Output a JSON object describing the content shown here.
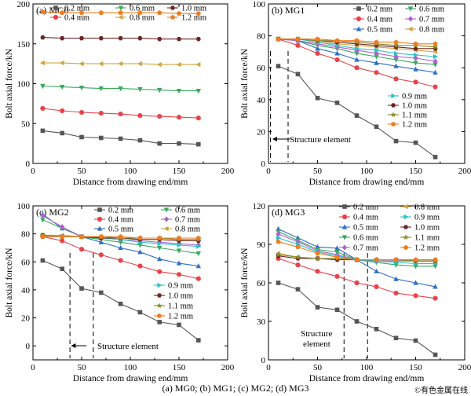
{
  "colors": {
    "0.2 mm": "#555555",
    "0.4 mm": "#e8434b",
    "0.5 mm": "#2f6fc4",
    "0.6 mm": "#3aa85e",
    "0.7 mm": "#b160cf",
    "0.8 mm": "#d1a43f",
    "0.9 mm": "#2cc2c8",
    "1.0 mm": "#6b2626",
    "1.1 mm": "#8a8a2e",
    "1.2 mm": "#f07c1e"
  },
  "caption": "(a) MG0; (b) MG1; (c) MG2; (d) MG3",
  "watermark": "©有色金属在线",
  "chart_data": [
    {
      "type": "line",
      "panel_label": "(a) MG0",
      "xlabel": "Distance from drawing end/mm",
      "ylabel": "Bolt axial force/kN",
      "xlim": [
        0,
        200
      ],
      "ylim": [
        0,
        200
      ],
      "xticks": [
        "0",
        "50",
        "100",
        "150",
        "200"
      ],
      "yticks": [
        "0",
        "50",
        "100",
        "150",
        "200"
      ],
      "x": [
        10,
        30,
        50,
        70,
        90,
        110,
        130,
        150,
        170
      ],
      "annotation": "",
      "series": [
        {
          "name": "0.2 mm",
          "values": [
            41,
            38,
            33,
            32,
            31,
            29,
            25,
            25,
            24
          ]
        },
        {
          "name": "0.4 mm",
          "values": [
            69,
            66,
            64,
            63,
            62,
            60,
            59,
            58,
            57
          ]
        },
        {
          "name": "0.6 mm",
          "values": [
            97,
            96,
            95,
            94,
            94,
            93,
            92,
            91,
            91
          ]
        },
        {
          "name": "0.8 mm",
          "values": [
            126,
            126,
            125,
            125,
            125,
            125,
            124,
            124,
            124
          ]
        },
        {
          "name": "1.0 mm",
          "values": [
            158,
            157,
            157,
            157,
            157,
            157,
            156,
            156,
            156
          ]
        },
        {
          "name": "1.2 mm",
          "values": [
            190,
            189,
            189,
            189,
            189,
            189,
            189,
            188,
            188
          ]
        }
      ]
    },
    {
      "type": "line",
      "panel_label": "(b) MG1",
      "xlabel": "Distance from drawing end/mm",
      "ylabel": "Bolt axial force/kN",
      "xlim": [
        0,
        200
      ],
      "ylim": [
        0,
        100
      ],
      "xticks": [
        "0",
        "50",
        "100",
        "150",
        "200"
      ],
      "yticks": [
        "0",
        "20",
        "40",
        "60",
        "80",
        "100"
      ],
      "x": [
        10,
        30,
        50,
        70,
        90,
        110,
        130,
        150,
        170
      ],
      "annotation": "Structure element",
      "series": [
        {
          "name": "0.2 mm",
          "values": [
            61,
            56,
            41,
            38,
            30,
            23,
            14,
            13,
            4
          ]
        },
        {
          "name": "0.4 mm",
          "values": [
            78,
            74,
            69,
            65,
            60,
            57,
            53,
            51,
            48
          ]
        },
        {
          "name": "0.5 mm",
          "values": [
            78,
            77,
            72,
            69,
            65,
            63,
            61,
            59,
            57
          ]
        },
        {
          "name": "0.6 mm",
          "values": [
            78,
            77,
            74,
            72,
            69,
            67,
            65,
            63,
            62
          ]
        },
        {
          "name": "0.7 mm",
          "values": [
            78,
            77,
            75,
            73,
            71,
            69,
            67,
            66,
            64
          ]
        },
        {
          "name": "0.8 mm",
          "values": [
            78,
            78,
            76,
            75,
            74,
            73,
            72,
            71,
            70
          ]
        },
        {
          "name": "0.9 mm",
          "values": [
            78,
            78,
            76,
            74,
            72,
            71,
            69,
            68,
            67
          ]
        },
        {
          "name": "1.0 mm",
          "values": [
            78,
            78,
            77,
            76,
            75,
            74,
            73,
            72,
            72
          ]
        },
        {
          "name": "1.1 mm",
          "values": [
            78,
            78,
            77,
            77,
            76,
            75,
            74,
            74,
            73
          ]
        },
        {
          "name": "1.2 mm",
          "values": [
            78,
            78,
            78,
            77,
            77,
            76,
            76,
            75,
            75
          ]
        }
      ]
    },
    {
      "type": "line",
      "panel_label": "(c) MG2",
      "xlabel": "Distance from drawing end/mm",
      "ylabel": "Bolt axial force/kN",
      "xlim": [
        0,
        200
      ],
      "ylim": [
        -10,
        100
      ],
      "xticks": [
        "0",
        "50",
        "100",
        "150",
        "200"
      ],
      "yticks": [
        "0",
        "20",
        "40",
        "60",
        "80",
        "100"
      ],
      "x": [
        10,
        30,
        50,
        70,
        90,
        110,
        130,
        150,
        170
      ],
      "annotation": "Structure element",
      "series": [
        {
          "name": "0.2 mm",
          "values": [
            61,
            55,
            41,
            38,
            30,
            24,
            17,
            15,
            4
          ]
        },
        {
          "name": "0.4 mm",
          "values": [
            78,
            75,
            69,
            65,
            61,
            57,
            53,
            51,
            48
          ]
        },
        {
          "name": "0.5 mm",
          "values": [
            94,
            84,
            78,
            74,
            70,
            67,
            62,
            59,
            57
          ]
        },
        {
          "name": "0.6 mm",
          "values": [
            90,
            84,
            78,
            76,
            74,
            72,
            70,
            68,
            66
          ]
        },
        {
          "name": "0.7 mm",
          "values": [
            93,
            85,
            78,
            77,
            76,
            75,
            74,
            73,
            72
          ]
        },
        {
          "name": "0.8 mm",
          "values": [
            79,
            79,
            78,
            78,
            77,
            77,
            77,
            76,
            76
          ]
        },
        {
          "name": "0.9 mm",
          "values": [
            79,
            78,
            78,
            77,
            76,
            74,
            73,
            72,
            71
          ]
        },
        {
          "name": "1.0 mm",
          "values": [
            79,
            78,
            78,
            77,
            77,
            76,
            76,
            75,
            75
          ]
        },
        {
          "name": "1.1 mm",
          "values": [
            79,
            78,
            78,
            78,
            77,
            77,
            77,
            76,
            76
          ]
        },
        {
          "name": "1.2 mm",
          "values": [
            78,
            78,
            78,
            78,
            78,
            77,
            77,
            77,
            77
          ]
        }
      ]
    },
    {
      "type": "line",
      "panel_label": "(d) MG3",
      "xlabel": "Distance from drawing end/mm",
      "ylabel": "Bolt axial force/kN",
      "xlim": [
        0,
        200
      ],
      "ylim": [
        0,
        120
      ],
      "xticks": [
        "0",
        "50",
        "100",
        "150",
        "200"
      ],
      "yticks": [
        "0",
        "30",
        "60",
        "90",
        "120"
      ],
      "x": [
        10,
        30,
        50,
        70,
        90,
        110,
        130,
        150,
        170
      ],
      "annotation": "Structure element",
      "series": [
        {
          "name": "0.2 mm",
          "values": [
            60,
            55,
            41,
            39,
            30,
            24,
            17,
            15,
            4
          ]
        },
        {
          "name": "0.4 mm",
          "values": [
            79,
            74,
            69,
            65,
            60,
            57,
            52,
            50,
            48
          ]
        },
        {
          "name": "0.5 mm",
          "values": [
            102,
            95,
            88,
            87,
            78,
            69,
            63,
            60,
            57
          ]
        },
        {
          "name": "0.6 mm",
          "values": [
            100,
            93,
            86,
            84,
            78,
            76,
            74,
            73,
            73
          ]
        },
        {
          "name": "0.7 mm",
          "values": [
            98,
            92,
            85,
            82,
            78,
            77,
            77,
            77,
            77
          ]
        },
        {
          "name": "0.8 mm",
          "values": [
            83,
            80,
            79,
            78,
            78,
            78,
            78,
            78,
            78
          ]
        },
        {
          "name": "0.9 mm",
          "values": [
            95,
            90,
            84,
            81,
            78,
            77,
            76,
            75,
            75
          ]
        },
        {
          "name": "1.0 mm",
          "values": [
            81,
            79,
            79,
            78,
            78,
            78,
            78,
            77,
            77
          ]
        },
        {
          "name": "1.1 mm",
          "values": [
            82,
            80,
            79,
            79,
            78,
            78,
            78,
            77,
            77
          ]
        },
        {
          "name": "1.2 mm",
          "values": [
            92,
            88,
            83,
            80,
            78,
            78,
            78,
            78,
            78
          ]
        }
      ]
    }
  ]
}
